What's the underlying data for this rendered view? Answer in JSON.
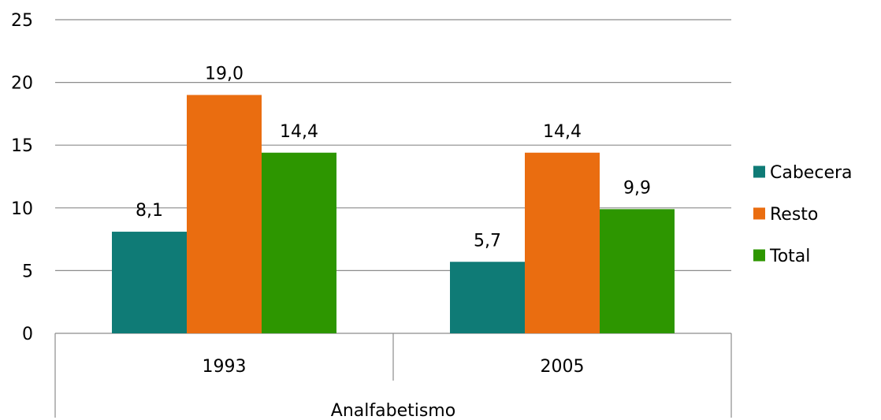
{
  "chart_data": {
    "type": "bar",
    "group_label": "Analfabetismo",
    "categories": [
      "1993",
      "2005"
    ],
    "series": [
      {
        "name": "Cabecera",
        "values": [
          8.1,
          5.7
        ],
        "labels": [
          "8,1",
          "5,7"
        ],
        "color": "#0f7b76"
      },
      {
        "name": "Resto",
        "values": [
          19.0,
          14.4
        ],
        "labels": [
          "19,0",
          "14,4"
        ],
        "color": "#ea6d10"
      },
      {
        "name": "Total",
        "values": [
          14.4,
          9.9
        ],
        "labels": [
          "14,4",
          "9,9"
        ],
        "color": "#2d9600"
      }
    ],
    "ylim": [
      0,
      25
    ],
    "yticks": [
      0,
      5,
      10,
      15,
      20,
      25
    ],
    "grid": true,
    "legend_position": "right"
  }
}
